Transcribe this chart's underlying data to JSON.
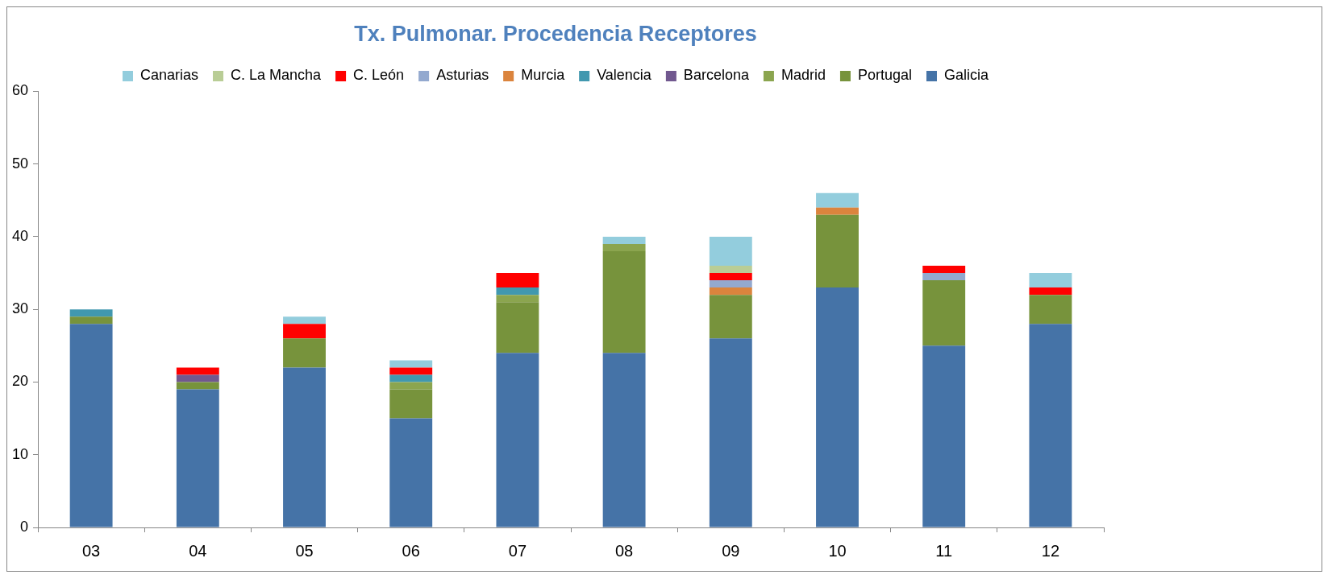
{
  "chart_data": {
    "type": "bar",
    "title": "Tx. Pulmonar. Procedencia Receptores",
    "stacked": true,
    "categories": [
      "03",
      "04",
      "05",
      "06",
      "07",
      "08",
      "09",
      "10",
      "11",
      "12"
    ],
    "series": [
      {
        "name": "Galicia",
        "color": "#4573a7",
        "values": [
          28,
          19,
          22,
          15,
          24,
          24,
          26,
          33,
          25,
          28
        ]
      },
      {
        "name": "Portugal",
        "color": "#77933c",
        "values": [
          1,
          1,
          4,
          4,
          7,
          14,
          6,
          10,
          9,
          4
        ]
      },
      {
        "name": "Madrid",
        "color": "#8ba54f",
        "values": [
          null,
          null,
          null,
          1,
          1,
          1,
          null,
          null,
          null,
          null
        ]
      },
      {
        "name": "Barcelona",
        "color": "#71588f",
        "values": [
          null,
          1,
          null,
          null,
          null,
          null,
          null,
          null,
          null,
          null
        ]
      },
      {
        "name": "Valencia",
        "color": "#4198af",
        "values": [
          1,
          null,
          null,
          1,
          1,
          null,
          null,
          null,
          null,
          null
        ]
      },
      {
        "name": "Murcia",
        "color": "#db843d",
        "values": [
          null,
          null,
          null,
          null,
          null,
          null,
          1,
          1,
          null,
          null
        ]
      },
      {
        "name": "Asturias",
        "color": "#93a9cf",
        "values": [
          null,
          null,
          null,
          null,
          null,
          null,
          1,
          null,
          1,
          null
        ]
      },
      {
        "name": "C. León",
        "color": "#ff0000",
        "values": [
          null,
          1,
          2,
          1,
          2,
          null,
          1,
          null,
          1,
          1
        ]
      },
      {
        "name": "C. La Mancha",
        "color": "#b9cd96",
        "values": [
          null,
          null,
          null,
          null,
          null,
          null,
          1,
          null,
          null,
          null
        ]
      },
      {
        "name": "Canarias",
        "color": "#93cddd",
        "values": [
          null,
          null,
          1,
          1,
          null,
          1,
          4,
          2,
          null,
          2
        ]
      }
    ],
    "ylim": [
      0,
      60
    ],
    "yticks": [
      0,
      10,
      20,
      30,
      40,
      50,
      60
    ],
    "grid": false,
    "legend": "top"
  }
}
